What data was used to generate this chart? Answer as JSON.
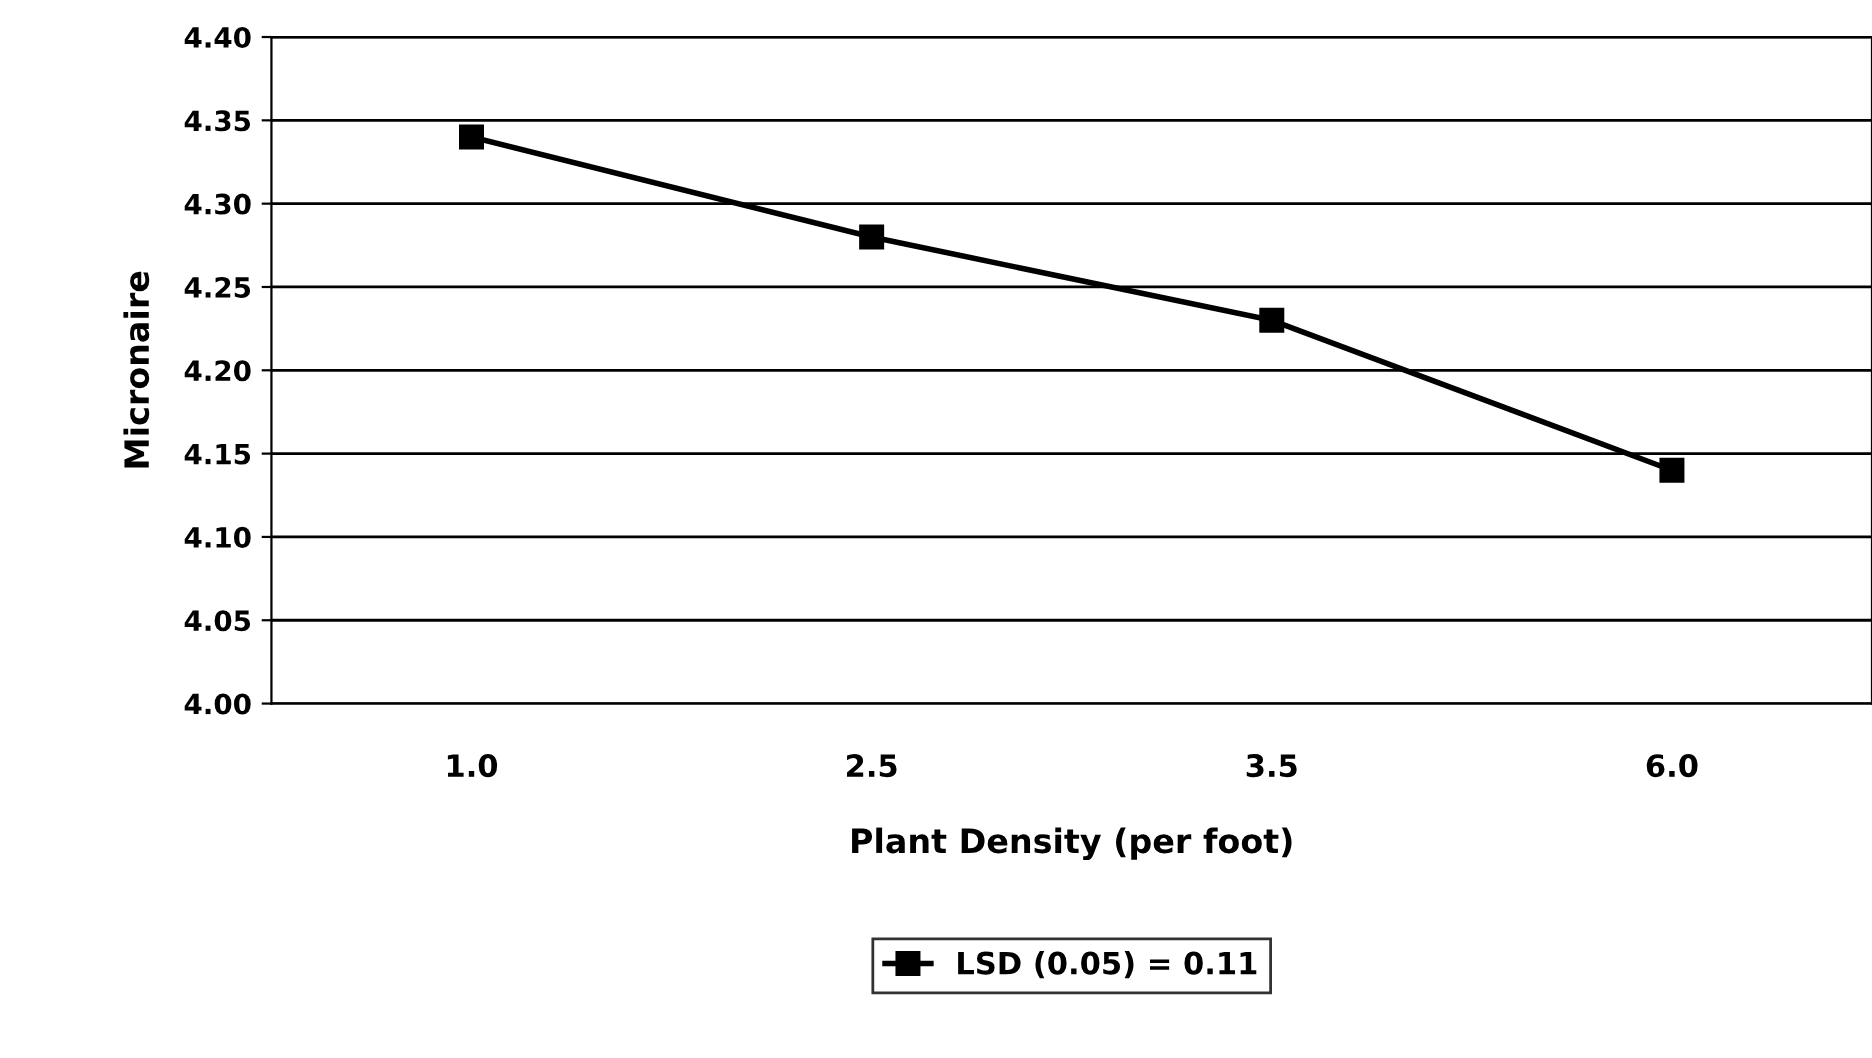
{
  "chart_data": {
    "type": "line",
    "xlabel": "Plant Density (per foot)",
    "ylabel": "Micronaire",
    "categories": [
      "1.0",
      "2.5",
      "3.5",
      "6.0"
    ],
    "series": [
      {
        "name": "LSD (0.05) = 0.11",
        "color": "#000000",
        "values": [
          4.34,
          4.28,
          4.23,
          4.14
        ]
      }
    ],
    "ylim": [
      4.0,
      4.4
    ],
    "yticks": [
      {
        "value": 4.0,
        "label": "4.00"
      },
      {
        "value": 4.05,
        "label": "4.05"
      },
      {
        "value": 4.1,
        "label": "4.10"
      },
      {
        "value": 4.15,
        "label": "4.15"
      },
      {
        "value": 4.2,
        "label": "4.20"
      },
      {
        "value": 4.25,
        "label": "4.25"
      },
      {
        "value": 4.3,
        "label": "4.30"
      },
      {
        "value": 4.35,
        "label": "4.35"
      },
      {
        "value": 4.4,
        "label": "4.40"
      }
    ],
    "grid": "y",
    "legend": "bottom",
    "marker": "square",
    "line_style": "solid"
  }
}
